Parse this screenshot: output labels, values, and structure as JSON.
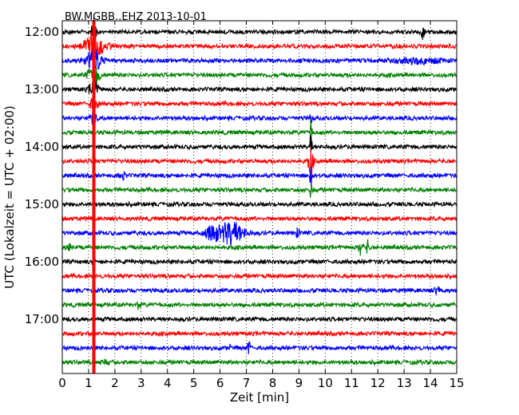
{
  "chart_data": {
    "type": "line",
    "title": "BW.MGBB..EHZ 2013-10-01",
    "xlabel": "Zeit  [min]",
    "ylabel": "UTC (Lokalzeit = UTC + 02:00)",
    "xlim": [
      0,
      15
    ],
    "x_ticks": [
      "0",
      "1",
      "2",
      "3",
      "4",
      "5",
      "6",
      "7",
      "8",
      "9",
      "10",
      "11",
      "12",
      "13",
      "14",
      "15"
    ],
    "y_ticks": [
      {
        "label": "12:00",
        "trace": 0
      },
      {
        "label": "13:00",
        "trace": 4
      },
      {
        "label": "14:00",
        "trace": 8
      },
      {
        "label": "15:00",
        "trace": 12
      },
      {
        "label": "16:00",
        "trace": 16
      },
      {
        "label": "17:00",
        "trace": 20
      }
    ],
    "grid": true,
    "trace_interval_min": 15,
    "trace_count": 24,
    "series_colors": [
      "#000000",
      "#ff0000",
      "#0000ff",
      "#008000"
    ],
    "events": [
      {
        "trace": 0,
        "minute": 13.7,
        "amp": 10,
        "width": 0.04
      },
      {
        "trace": 0,
        "minute": 1.2,
        "amp": 26,
        "width": 0.05
      },
      {
        "trace": 1,
        "minute": 1.25,
        "amp": 22,
        "width": 0.25
      },
      {
        "trace": 2,
        "minute": 1.2,
        "amp": 14,
        "width": 0.2
      },
      {
        "trace": 2,
        "minute": 13.5,
        "amp": 3,
        "width": 0.6
      },
      {
        "trace": 3,
        "minute": 1.2,
        "amp": 12,
        "width": 0.15
      },
      {
        "trace": 4,
        "minute": 1.2,
        "amp": 10,
        "width": 0.12
      },
      {
        "trace": 5,
        "minute": 1.2,
        "amp": 9,
        "width": 0.1
      },
      {
        "trace": 6,
        "minute": 1.2,
        "amp": 7,
        "width": 0.1
      },
      {
        "trace": 6,
        "minute": 9.45,
        "amp": 10,
        "width": 0.03
      },
      {
        "trace": 7,
        "minute": 9.45,
        "amp": 16,
        "width": 0.03
      },
      {
        "trace": 8,
        "minute": 9.45,
        "amp": 18,
        "width": 0.03
      },
      {
        "trace": 9,
        "minute": 9.45,
        "amp": 24,
        "width": 0.06
      },
      {
        "trace": 10,
        "minute": 9.45,
        "amp": 20,
        "width": 0.03
      },
      {
        "trace": 10,
        "minute": 2.3,
        "amp": 4,
        "width": 0.08
      },
      {
        "trace": 11,
        "minute": 9.45,
        "amp": 10,
        "width": 0.03
      },
      {
        "trace": 14,
        "minute": 6.4,
        "amp": 14,
        "width": 0.35
      },
      {
        "trace": 14,
        "minute": 5.7,
        "amp": 9,
        "width": 0.15
      },
      {
        "trace": 14,
        "minute": 8.95,
        "amp": 7,
        "width": 0.04
      },
      {
        "trace": 15,
        "minute": 11.35,
        "amp": 11,
        "width": 0.05
      },
      {
        "trace": 15,
        "minute": 11.6,
        "amp": 8,
        "width": 0.05
      },
      {
        "trace": 15,
        "minute": 0.25,
        "amp": 4,
        "width": 0.06
      },
      {
        "trace": 18,
        "minute": 14.3,
        "amp": 4,
        "width": 0.1
      },
      {
        "trace": 19,
        "minute": 2.9,
        "amp": 5,
        "width": 0.04
      },
      {
        "trace": 22,
        "minute": 7.1,
        "amp": 14,
        "width": 0.03
      },
      {
        "trace": 22,
        "minute": 6.35,
        "amp": 6,
        "width": 0.03
      },
      {
        "trace": 23,
        "minute": 1.6,
        "amp": 3,
        "width": 0.1
      }
    ],
    "continuous_signal": {
      "minute": 1.2,
      "first_trace": 0,
      "last_trace": 23,
      "color": "#ff0000"
    }
  }
}
